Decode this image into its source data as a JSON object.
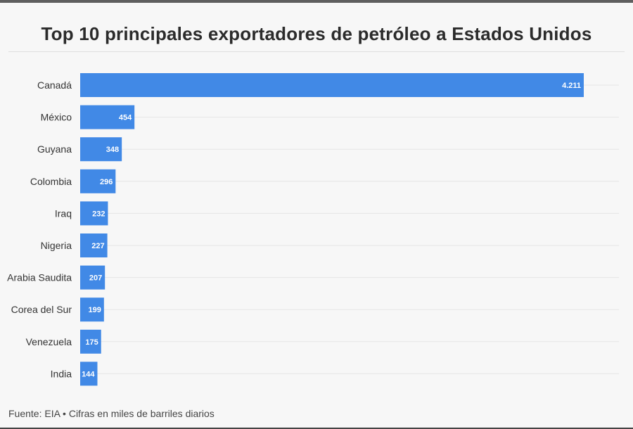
{
  "chart_data": {
    "type": "bar",
    "orientation": "horizontal",
    "title": "Top 10 principales exportadores de petróleo a Estados Unidos",
    "categories": [
      "Canadá",
      "México",
      "Guyana",
      "Colombia",
      "Iraq",
      "Nigeria",
      "Arabia Saudita",
      "Corea del Sur",
      "Venezuela",
      "India"
    ],
    "values": [
      4211,
      454,
      348,
      296,
      232,
      227,
      207,
      199,
      175,
      144
    ],
    "value_labels": [
      "4.211",
      "454",
      "348",
      "296",
      "232",
      "227",
      "207",
      "199",
      "175",
      "144"
    ],
    "xlim": [
      0,
      4211
    ],
    "grid": true,
    "bar_color": "#4189e6",
    "label_color": "#ffffff",
    "grid_color": "#e6e6e6"
  },
  "footer": {
    "source": "Fuente: EIA • Cifras en miles de barriles diarios"
  }
}
